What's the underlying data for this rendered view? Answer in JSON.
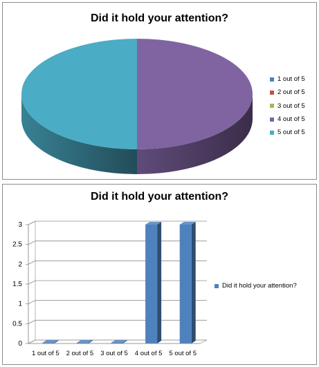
{
  "chart_data": [
    {
      "type": "pie",
      "title": "Did it hold your attention?",
      "categories": [
        "1 out of 5",
        "2 out of 5",
        "3 out of 5",
        "4 out of 5",
        "5 out of 5"
      ],
      "values": [
        0,
        0,
        0,
        3,
        3
      ],
      "colors": [
        "#4f81bd",
        "#c0504d",
        "#9bbb59",
        "#8064a2",
        "#4bacc6"
      ],
      "style": "3d",
      "legend": "right"
    },
    {
      "type": "bar",
      "title": "Did it hold your attention?",
      "categories": [
        "1 out of 5",
        "2 out of 5",
        "3 out of 5",
        "4 out of 5",
        "5 out of 5"
      ],
      "series": [
        {
          "name": "Did it hold your attention?",
          "values": [
            0,
            0,
            0,
            3,
            3
          ],
          "color": "#4f81bd"
        }
      ],
      "y_ticks": [
        "0",
        "0.5",
        "1",
        "1.5",
        "2",
        "2.5",
        "3"
      ],
      "ylim": [
        0,
        3
      ],
      "grid": true,
      "style": "3d",
      "legend": "right"
    }
  ]
}
